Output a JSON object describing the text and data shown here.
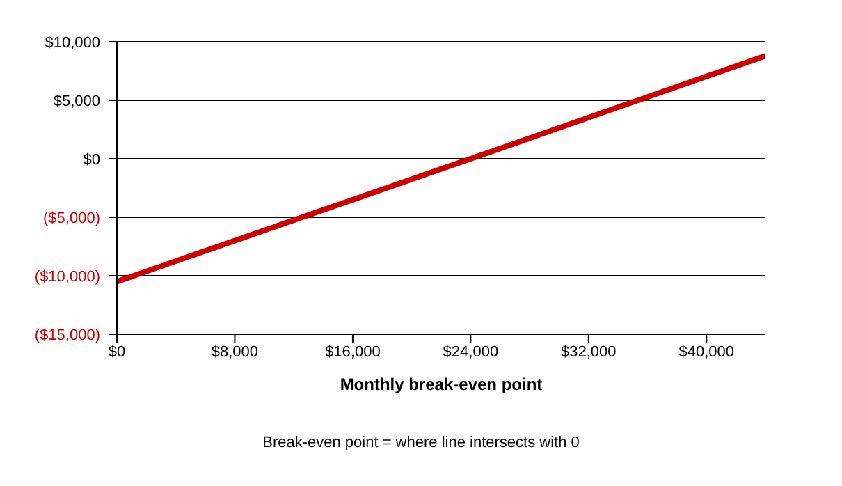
{
  "chart_data": {
    "type": "line",
    "xlabel": "Monthly break-even point",
    "annotations": [
      "Break-even point = where line intersects with 0"
    ],
    "x": [
      0,
      24000,
      44000
    ],
    "series": [
      {
        "color": "#cc0000",
        "values": [
          -10500,
          0,
          8800
        ]
      }
    ],
    "xlim": [
      0,
      44000
    ],
    "xticks": [
      {
        "value": 0,
        "label": "$0"
      },
      {
        "value": 8000,
        "label": "$8,000"
      },
      {
        "value": 16000,
        "label": "$16,000"
      },
      {
        "value": 24000,
        "label": "$24,000"
      },
      {
        "value": 32000,
        "label": "$32,000"
      },
      {
        "value": 40000,
        "label": "$40,000"
      }
    ],
    "ylim": [
      -15000,
      10000
    ],
    "yticks": [
      {
        "value": -15000,
        "label": "($15,000)"
      },
      {
        "value": -10000,
        "label": "($10,000)"
      },
      {
        "value": -5000,
        "label": "($5,000)"
      },
      {
        "value": 0,
        "label": "$0"
      },
      {
        "value": 5000,
        "label": "$5,000"
      },
      {
        "value": 10000,
        "label": "$10,000"
      }
    ],
    "grid": "y",
    "marker": "none",
    "line_style": "solid"
  }
}
